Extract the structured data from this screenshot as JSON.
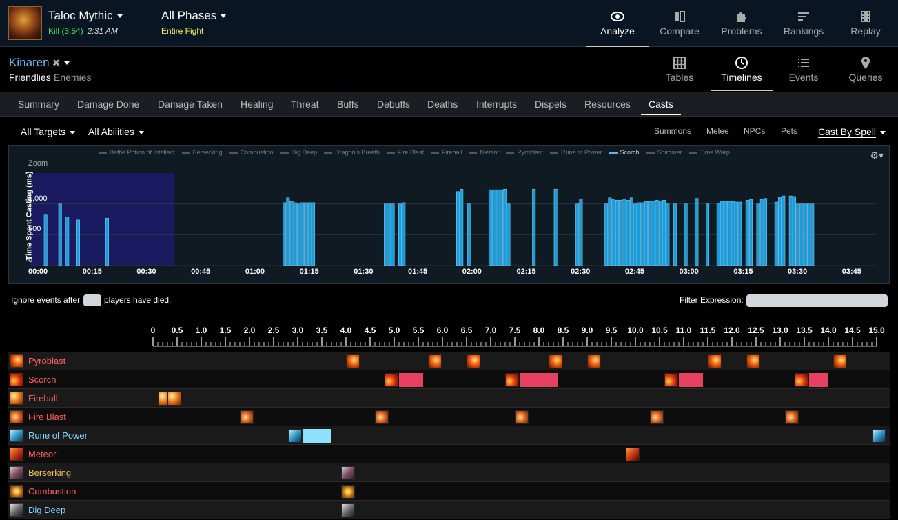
{
  "header": {
    "boss": "Taloc Mythic",
    "kill": "Kill (3:54)",
    "time": "2:31 AM",
    "phases": "All Phases",
    "fight": "Entire Fight",
    "nav": [
      {
        "label": "Analyze",
        "icon": "eye-icon"
      },
      {
        "label": "Compare",
        "icon": "compare-icon"
      },
      {
        "label": "Problems",
        "icon": "puzzle-icon"
      },
      {
        "label": "Rankings",
        "icon": "rankings-icon"
      },
      {
        "label": "Replay",
        "icon": "film-icon"
      }
    ]
  },
  "character": {
    "name": "Kinaren",
    "friendlies": "Friendlies",
    "enemies": "Enemies"
  },
  "views": [
    {
      "label": "Tables",
      "icon": "grid-icon"
    },
    {
      "label": "Timelines",
      "icon": "clock-icon"
    },
    {
      "label": "Events",
      "icon": "list-icon"
    },
    {
      "label": "Queries",
      "icon": "pin-icon"
    }
  ],
  "tabs": [
    "Summary",
    "Damage Done",
    "Damage Taken",
    "Healing",
    "Threat",
    "Buffs",
    "Debuffs",
    "Deaths",
    "Interrupts",
    "Dispels",
    "Resources",
    "Casts"
  ],
  "filters": {
    "targets": "All Targets",
    "abilities": "All Abilities",
    "summons": "Summons",
    "melee": "Melee",
    "npcs": "NPCs",
    "pets": "Pets",
    "castby": "Cast By Spell"
  },
  "chart_data": {
    "type": "bar",
    "title": "",
    "ylabel": "Time Spent Casting (ms)",
    "zoom_label": "Zoom",
    "legend": [
      "Battle Potion of Intellect",
      "Berserking",
      "Combustion",
      "Dig Deep",
      "Dragon's Breath",
      "Fire Blast",
      "Fireball",
      "Meteor",
      "Pyroblast",
      "Rune of Power",
      "Scorch",
      "Shimmer",
      "Time Warp"
    ],
    "highlighted_series": "Scorch",
    "bar_color": "#1a9cd8",
    "selection_color": "#1a1a60",
    "selection_range": [
      0,
      40
    ],
    "xlim": [
      0,
      234
    ],
    "ylim": [
      0,
      1500
    ],
    "yticks": [
      "0",
      "500",
      "1,000"
    ],
    "xticks": [
      "00:00",
      "00:15",
      "00:30",
      "00:45",
      "01:00",
      "01:15",
      "01:30",
      "01:45",
      "02:00",
      "02:15",
      "02:30",
      "02:45",
      "03:00",
      "03:15",
      "03:30",
      "03:45"
    ],
    "x": [
      4,
      8,
      10,
      13,
      21,
      70,
      71,
      72,
      73,
      74,
      75,
      76,
      77,
      78,
      98,
      99,
      100,
      102,
      103,
      118,
      119,
      121,
      127,
      128,
      129,
      130,
      131,
      132,
      139,
      145,
      151,
      152,
      159,
      160,
      161,
      162,
      163,
      164,
      165,
      166,
      167,
      168,
      169,
      170,
      171,
      172,
      173,
      174,
      175,
      176,
      178,
      181,
      184,
      187,
      190,
      191,
      192,
      193,
      194,
      195,
      196,
      198,
      199,
      201,
      202,
      203,
      206,
      207,
      208,
      210,
      211,
      212,
      213,
      214,
      215,
      216
    ],
    "values": [
      820,
      1000,
      790,
      740,
      770,
      1020,
      1100,
      1040,
      1020,
      1000,
      1020,
      1020,
      1020,
      1020,
      1000,
      1000,
      1000,
      1000,
      1020,
      1200,
      1240,
      1000,
      1230,
      1230,
      1230,
      1230,
      1240,
      1000,
      1240,
      1240,
      1000,
      1080,
      1000,
      1100,
      1080,
      1060,
      1060,
      1080,
      1060,
      1100,
      1000,
      1020,
      1020,
      1040,
      1040,
      1040,
      1060,
      1050,
      1060,
      1000,
      1000,
      1000,
      1090,
      1000,
      1010,
      1050,
      1040,
      1040,
      1040,
      1030,
      1030,
      1060,
      1070,
      1000,
      1070,
      1090,
      1030,
      1110,
      1130,
      1130,
      1120,
      1000,
      1000,
      1000,
      1000,
      1000
    ]
  },
  "ignore": {
    "before": "Ignore events after",
    "after": "players have died.",
    "filter_label": "Filter Expression:"
  },
  "timeline": {
    "ruler_labels": [
      "0",
      "0.5",
      "1.0",
      "1.5",
      "2.0",
      "2.5",
      "3.0",
      "3.5",
      "4.0",
      "4.5",
      "5.0",
      "5.5",
      "6.0",
      "6.5",
      "7.0",
      "7.5",
      "8.0",
      "8.5",
      "9.0",
      "9.5",
      "10.0",
      "10.5",
      "11.0",
      "11.5",
      "12.0",
      "12.5",
      "13.0",
      "13.5",
      "14.0",
      "14.5",
      "15.0"
    ],
    "rows": [
      {
        "name": "Pyroblast",
        "color": "#ff6060",
        "icon": "pyroblast-icon",
        "casts": [
          4.0,
          5.7,
          6.5,
          8.2,
          9.0,
          11.5,
          12.3,
          14.1
        ],
        "bars": []
      },
      {
        "name": "Scorch",
        "color": "#ff6060",
        "icon": "scorch-icon",
        "casts": [
          4.8,
          7.3,
          10.6,
          13.3
        ],
        "bars": [
          [
            5.1,
            5.6
          ],
          [
            7.6,
            8.4
          ],
          [
            10.9,
            11.4
          ],
          [
            13.6,
            14.0
          ]
        ]
      },
      {
        "name": "Fireball",
        "color": "#ff6060",
        "icon": "fireball-icon",
        "casts": [
          0.1,
          0.3
        ],
        "bars": []
      },
      {
        "name": "Fire Blast",
        "color": "#ff6060",
        "icon": "fire-blast-icon",
        "casts": [
          1.8,
          4.6,
          7.5,
          10.3,
          13.1
        ],
        "bars": []
      },
      {
        "name": "Rune of Power",
        "color": "#80d8ff",
        "icon": "rune-of-power-icon",
        "casts": [
          2.8,
          14.9
        ],
        "bars": [
          [
            3.1,
            3.7
          ]
        ]
      },
      {
        "name": "Meteor",
        "color": "#ff6060",
        "icon": "meteor-icon",
        "casts": [
          9.8
        ],
        "bars": []
      },
      {
        "name": "Berserking",
        "color": "#f0c060",
        "icon": "berserking-icon",
        "casts": [
          3.9
        ],
        "bars": []
      },
      {
        "name": "Combustion",
        "color": "#ff6060",
        "icon": "combustion-icon",
        "casts": [
          3.9
        ],
        "bars": []
      },
      {
        "name": "Dig Deep",
        "color": "#80d8ff",
        "icon": "dig-deep-icon",
        "casts": [
          3.9
        ],
        "bars": []
      }
    ]
  }
}
